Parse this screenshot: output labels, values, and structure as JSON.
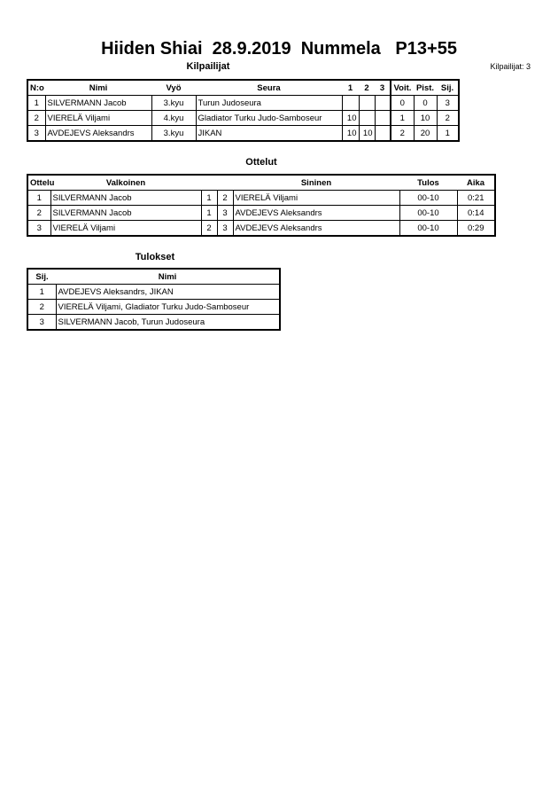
{
  "title": "Hiiden Shiai  28.9.2019  Nummela   P13+55",
  "competitors": {
    "heading": "Kilpailijat",
    "count_label": "Kilpailijat: 3",
    "headers": [
      "N:o",
      "Nimi",
      "Vyö",
      "Seura",
      "1",
      "2",
      "3",
      "Voit.",
      "Pist.",
      "Sij."
    ],
    "rows": [
      [
        "1",
        "SILVERMANN Jacob",
        "3.kyu",
        "Turun Judoseura",
        "",
        "",
        "",
        "0",
        "0",
        "3"
      ],
      [
        "2",
        "VIERELÄ Viljami",
        "4.kyu",
        "Gladiator Turku Judo-Samboseur",
        "10",
        "",
        "",
        "1",
        "10",
        "2"
      ],
      [
        "3",
        "AVDEJEVS Aleksandrs",
        "3.kyu",
        "JIKAN",
        "10",
        "10",
        "",
        "2",
        "20",
        "1"
      ]
    ]
  },
  "matches": {
    "heading": "Ottelut",
    "headers": [
      "Ottelu",
      "Valkoinen",
      "",
      "",
      "Sininen",
      "Tulos",
      "Aika"
    ],
    "rows": [
      [
        "1",
        "SILVERMANN Jacob",
        "1",
        "2",
        "VIERELÄ Viljami",
        "00-10",
        "0:21"
      ],
      [
        "2",
        "SILVERMANN Jacob",
        "1",
        "3",
        "AVDEJEVS Aleksandrs",
        "00-10",
        "0:14"
      ],
      [
        "3",
        "VIERELÄ Viljami",
        "2",
        "3",
        "AVDEJEVS Aleksandrs",
        "00-10",
        "0:29"
      ]
    ]
  },
  "results": {
    "heading": "Tulokset",
    "headers": [
      "Sij.",
      "Nimi"
    ],
    "rows": [
      [
        "1",
        "AVDEJEVS Aleksandrs, JIKAN"
      ],
      [
        "2",
        "VIERELÄ Viljami, Gladiator Turku Judo-Samboseur"
      ],
      [
        "3",
        "SILVERMANN Jacob, Turun Judoseura"
      ]
    ]
  }
}
